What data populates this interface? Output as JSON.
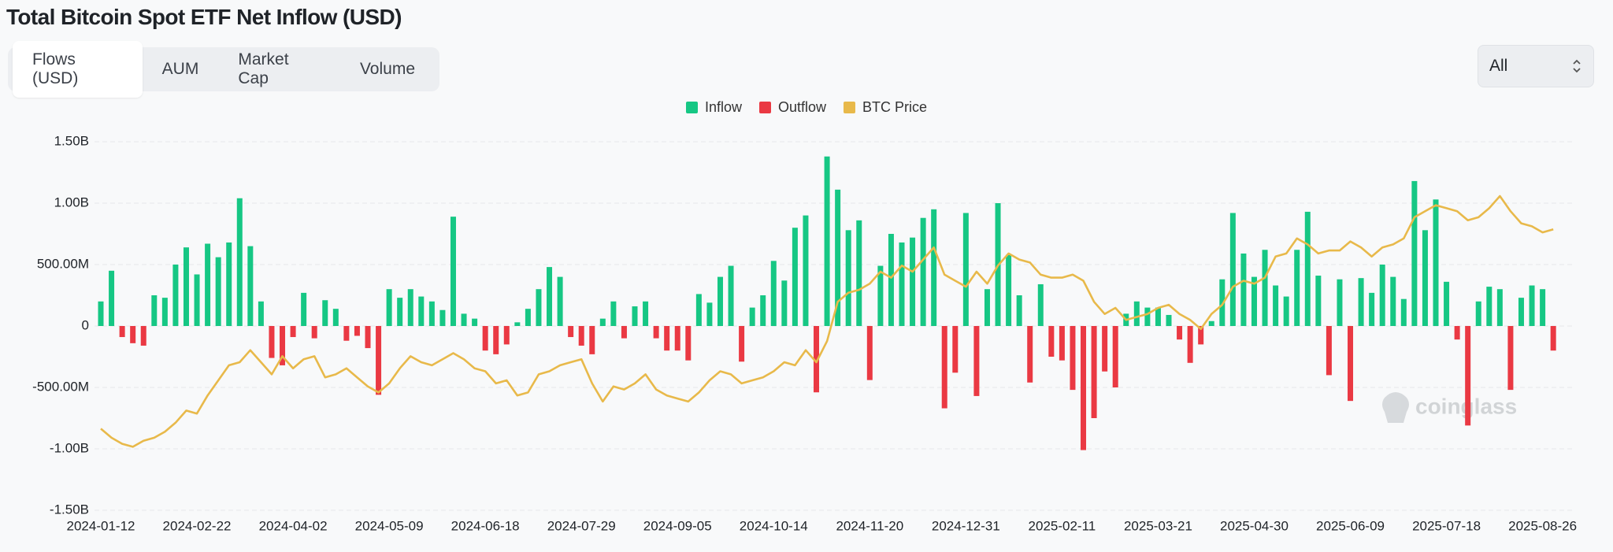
{
  "header": {
    "title": "Total Bitcoin Spot ETF Net Inflow (USD)"
  },
  "tabs": [
    "Flows (USD)",
    "AUM",
    "Market Cap",
    "Volume"
  ],
  "range_select": "All",
  "watermark": "coinglass",
  "chart_data": {
    "type": "bar",
    "categories": [
      "2024-01-12",
      null,
      null,
      null,
      null,
      null,
      null,
      null,
      null,
      "2024-02-22",
      null,
      null,
      null,
      null,
      null,
      null,
      null,
      null,
      "2024-04-02",
      null,
      null,
      null,
      null,
      null,
      null,
      null,
      null,
      "2024-05-09",
      null,
      null,
      null,
      null,
      null,
      null,
      null,
      null,
      "2024-06-18",
      null,
      null,
      null,
      null,
      null,
      null,
      null,
      null,
      "2024-07-29",
      null,
      null,
      null,
      null,
      null,
      null,
      null,
      null,
      "2024-09-05",
      null,
      null,
      null,
      null,
      null,
      null,
      null,
      null,
      "2024-10-14",
      null,
      null,
      null,
      null,
      null,
      null,
      null,
      null,
      "2024-11-20",
      null,
      null,
      null,
      null,
      null,
      null,
      null,
      null,
      "2024-12-31",
      null,
      null,
      null,
      null,
      null,
      null,
      null,
      null,
      "2025-02-11",
      null,
      null,
      null,
      null,
      null,
      null,
      null,
      null,
      "2025-03-21",
      null,
      null,
      null,
      null,
      null,
      null,
      null,
      null,
      "2025-04-30",
      null,
      null,
      null,
      null,
      null,
      null,
      null,
      null,
      "2025-06-09",
      null,
      null,
      null,
      null,
      null,
      null,
      null,
      null,
      "2025-07-18",
      null,
      null,
      null,
      null,
      null,
      null,
      null,
      null,
      "2025-08-26",
      null
    ],
    "series": [
      {
        "name": "Inflow",
        "color": "#16c784",
        "values": [
          200000000,
          450000000,
          null,
          null,
          null,
          250000000,
          230000000,
          500000000,
          640000000,
          420000000,
          670000000,
          560000000,
          680000000,
          1040000000,
          650000000,
          200000000,
          null,
          null,
          null,
          270000000,
          null,
          210000000,
          140000000,
          null,
          null,
          null,
          null,
          300000000,
          230000000,
          300000000,
          240000000,
          200000000,
          130000000,
          890000000,
          100000000,
          60000000,
          null,
          null,
          null,
          30000000,
          140000000,
          300000000,
          480000000,
          400000000,
          null,
          null,
          null,
          60000000,
          200000000,
          null,
          160000000,
          200000000,
          null,
          null,
          null,
          null,
          260000000,
          190000000,
          400000000,
          490000000,
          null,
          150000000,
          250000000,
          530000000,
          370000000,
          800000000,
          900000000,
          null,
          1380000000,
          1110000000,
          780000000,
          860000000,
          null,
          490000000,
          750000000,
          680000000,
          720000000,
          880000000,
          950000000,
          null,
          null,
          920000000,
          null,
          300000000,
          1000000000,
          580000000,
          250000000,
          null,
          340000000,
          null,
          null,
          null,
          null,
          null,
          null,
          null,
          100000000,
          200000000,
          150000000,
          150000000,
          90000000,
          null,
          null,
          null,
          40000000,
          380000000,
          920000000,
          590000000,
          400000000,
          620000000,
          330000000,
          240000000,
          620000000,
          930000000,
          410000000,
          null,
          380000000,
          null,
          390000000,
          270000000,
          500000000,
          400000000,
          220000000,
          1180000000,
          780000000,
          1030000000,
          360000000,
          null,
          null,
          200000000,
          320000000,
          300000000,
          null,
          230000000,
          330000000,
          300000000,
          null
        ]
      },
      {
        "name": "Outflow",
        "color": "#ea3943",
        "values": [
          null,
          null,
          -90000000,
          -140000000,
          -160000000,
          null,
          null,
          null,
          null,
          null,
          null,
          null,
          null,
          null,
          null,
          null,
          -260000000,
          -320000000,
          -90000000,
          null,
          -100000000,
          null,
          null,
          -120000000,
          -80000000,
          -180000000,
          -560000000,
          null,
          null,
          null,
          null,
          null,
          null,
          null,
          null,
          null,
          -200000000,
          -230000000,
          -150000000,
          null,
          null,
          null,
          null,
          null,
          -90000000,
          -160000000,
          -230000000,
          null,
          null,
          -100000000,
          null,
          null,
          -100000000,
          -200000000,
          -200000000,
          -280000000,
          null,
          null,
          null,
          null,
          -290000000,
          null,
          null,
          null,
          null,
          null,
          null,
          -540000000,
          null,
          null,
          null,
          null,
          -440000000,
          null,
          null,
          null,
          null,
          null,
          null,
          -670000000,
          -380000000,
          null,
          -570000000,
          null,
          null,
          null,
          null,
          -460000000,
          null,
          -250000000,
          -280000000,
          -520000000,
          -1010000000,
          -750000000,
          -370000000,
          -500000000,
          null,
          null,
          null,
          null,
          null,
          -110000000,
          -300000000,
          -150000000,
          null,
          null,
          null,
          null,
          null,
          null,
          null,
          null,
          null,
          null,
          null,
          -400000000,
          null,
          -610000000,
          null,
          null,
          null,
          null,
          null,
          null,
          null,
          null,
          null,
          -110000000,
          -810000000,
          null,
          null,
          null,
          -520000000,
          null,
          null,
          null,
          -200000000
        ]
      },
      {
        "name": "BTC Price",
        "color": "#e8b94a",
        "type": "line",
        "axis": "y2",
        "values": [
          46000,
          43000,
          41000,
          40000,
          42000,
          43000,
          45000,
          48000,
          52000,
          51000,
          57000,
          62000,
          67000,
          68000,
          72000,
          68000,
          64000,
          70000,
          66000,
          69000,
          70000,
          63000,
          64000,
          66000,
          63000,
          60000,
          58000,
          61000,
          66000,
          70000,
          68000,
          67000,
          69000,
          71000,
          69000,
          66000,
          65000,
          61000,
          62000,
          57000,
          58000,
          64000,
          65000,
          67000,
          68000,
          69000,
          61000,
          55000,
          60000,
          59000,
          61000,
          64000,
          59000,
          57000,
          56000,
          55000,
          58000,
          62000,
          65000,
          64000,
          61000,
          62000,
          63000,
          65000,
          68000,
          67000,
          72000,
          68000,
          75000,
          88000,
          91000,
          92000,
          94000,
          98000,
          96000,
          100000,
          98000,
          102000,
          106000,
          97000,
          95000,
          93000,
          98000,
          94000,
          100000,
          104000,
          102000,
          101000,
          97000,
          96000,
          96000,
          97000,
          95000,
          88000,
          84000,
          86000,
          82000,
          83000,
          84000,
          86000,
          87000,
          84000,
          82000,
          79000,
          84000,
          87000,
          93000,
          95000,
          94000,
          96000,
          103000,
          104000,
          109000,
          107000,
          104000,
          105000,
          105000,
          108000,
          106000,
          103000,
          106000,
          107000,
          109000,
          116000,
          118000,
          120000,
          119000,
          118000,
          115000,
          116000,
          119000,
          123000,
          118000,
          114000,
          113000,
          111000,
          112000
        ]
      }
    ],
    "ylim": [
      -1500000000,
      1500000000
    ],
    "yticks": [
      {
        "value": 1500000000,
        "label": "1.50B"
      },
      {
        "value": 1000000000,
        "label": "1.00B"
      },
      {
        "value": 500000000,
        "label": "500.00M"
      },
      0,
      {
        "value": -500000000,
        "label": "-500.00M"
      },
      {
        "value": -1000000000,
        "label": "-1.00B"
      },
      {
        "value": -1500000000,
        "label": "-1.50B"
      }
    ],
    "y2lim": [
      19000,
      141000
    ],
    "grid": true,
    "legend": "top"
  }
}
